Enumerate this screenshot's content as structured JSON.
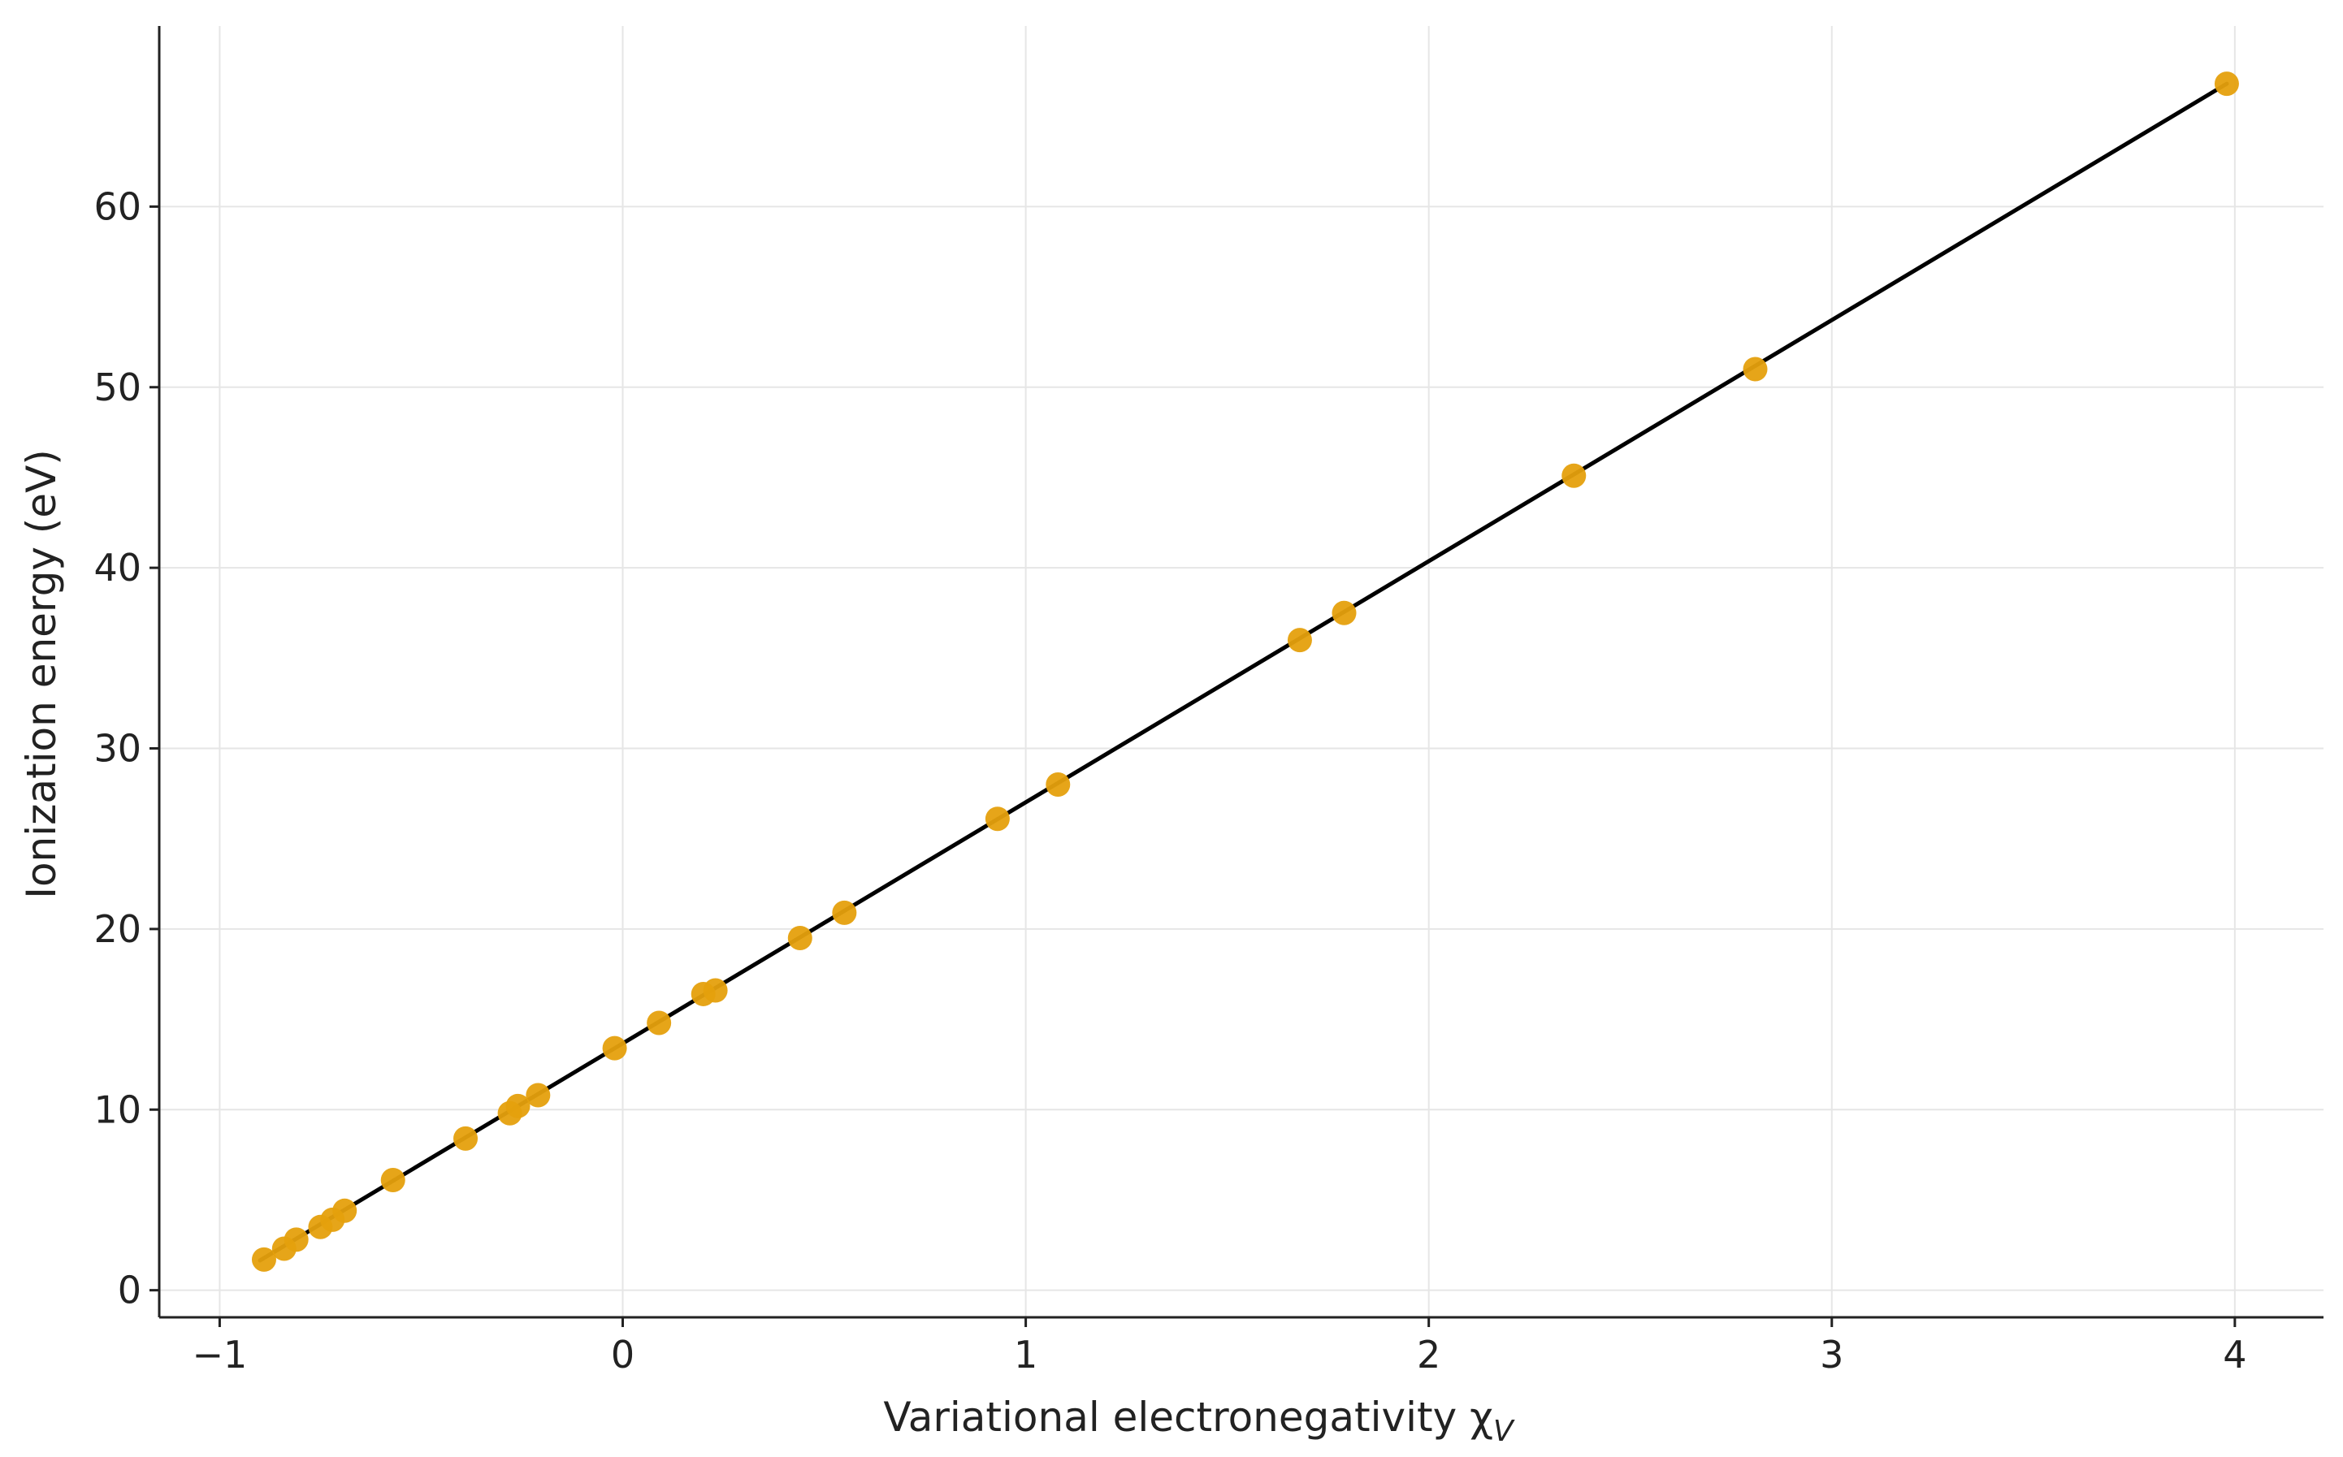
{
  "chart_data": {
    "type": "scatter",
    "title": "",
    "xlabel": "Variational electronegativity χ",
    "xlabel_subscript": "V",
    "ylabel": "Ionization energy (eV)",
    "xlim": [
      -1.15,
      4.22
    ],
    "ylim": [
      -1.5,
      70.0
    ],
    "xticks": [
      -1,
      0,
      1,
      2,
      3,
      4
    ],
    "xtick_labels": [
      "−1",
      "0",
      "1",
      "2",
      "3",
      "4"
    ],
    "yticks": [
      0,
      10,
      20,
      30,
      40,
      50,
      60
    ],
    "ytick_labels": [
      "0",
      "10",
      "20",
      "30",
      "40",
      "50",
      "60"
    ],
    "grid": true,
    "colors": {
      "points": "#E5A00D",
      "fit_line": "#000000",
      "grid": "#e6e6e6",
      "axes": "#222222"
    },
    "points": {
      "x": [
        -0.89,
        -0.84,
        -0.81,
        -0.75,
        -0.72,
        -0.69,
        -0.57,
        -0.39,
        -0.28,
        -0.26,
        -0.21,
        -0.02,
        0.09,
        0.2,
        0.23,
        0.44,
        0.55,
        0.93,
        1.08,
        1.68,
        1.79,
        2.36,
        2.81,
        3.98
      ],
      "y": [
        1.7,
        2.3,
        2.8,
        3.5,
        3.9,
        4.4,
        6.1,
        8.4,
        9.8,
        10.2,
        10.8,
        13.4,
        14.8,
        16.4,
        16.6,
        19.5,
        20.9,
        26.1,
        28.0,
        36.0,
        37.5,
        45.1,
        51.0,
        66.8
      ]
    },
    "fit_line": {
      "x": [
        -0.9,
        3.98
      ],
      "y": [
        1.65,
        66.8
      ]
    }
  }
}
